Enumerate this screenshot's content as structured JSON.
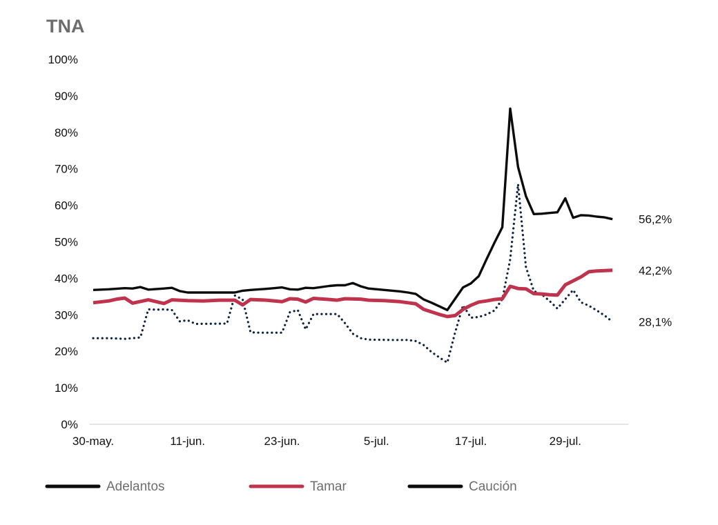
{
  "chart_data": {
    "type": "line",
    "title": "TNA",
    "xlabel": "",
    "ylabel": "",
    "ylim": [
      0,
      100
    ],
    "y_ticks": [
      0,
      10,
      20,
      30,
      40,
      50,
      60,
      70,
      80,
      90,
      100
    ],
    "y_tick_labels": [
      "0%",
      "10%",
      "20%",
      "30%",
      "40%",
      "50%",
      "60%",
      "70%",
      "80%",
      "90%",
      "100%"
    ],
    "x_range": [
      0,
      68
    ],
    "x_ticks": [
      {
        "x": 0,
        "label": "30-may."
      },
      {
        "x": 12,
        "label": "11-jun."
      },
      {
        "x": 24,
        "label": "23-jun."
      },
      {
        "x": 36,
        "label": "5-jul."
      },
      {
        "x": 48,
        "label": "17-jul."
      },
      {
        "x": 60,
        "label": "29-jul."
      }
    ],
    "series": [
      {
        "name": "Adelantos",
        "color": "#0b0b0b",
        "style": "solid",
        "end_label": "56,2%",
        "points": [
          [
            0,
            36.8
          ],
          [
            2,
            37
          ],
          [
            4,
            37.3
          ],
          [
            5,
            37.2
          ],
          [
            6,
            37.6
          ],
          [
            7,
            36.9
          ],
          [
            9,
            37.2
          ],
          [
            10,
            37.4
          ],
          [
            11,
            36.5
          ],
          [
            12,
            36.1
          ],
          [
            14,
            36.1
          ],
          [
            18,
            36.1
          ],
          [
            19,
            36.6
          ],
          [
            20,
            36.8
          ],
          [
            22,
            37.1
          ],
          [
            23,
            37.3
          ],
          [
            24,
            37.5
          ],
          [
            25,
            37
          ],
          [
            26,
            36.9
          ],
          [
            27,
            37.4
          ],
          [
            28,
            37.3
          ],
          [
            30,
            37.9
          ],
          [
            31,
            38.1
          ],
          [
            32,
            38.1
          ],
          [
            33,
            38.7
          ],
          [
            34,
            37.8
          ],
          [
            35,
            37.2
          ],
          [
            37,
            36.8
          ],
          [
            39,
            36.4
          ],
          [
            40,
            36.1
          ],
          [
            41,
            35.7
          ],
          [
            42,
            34.2
          ],
          [
            43,
            33.3
          ],
          [
            44,
            32.3
          ],
          [
            45,
            31.3
          ],
          [
            46,
            34.4
          ],
          [
            47,
            37.5
          ],
          [
            48,
            38.6
          ],
          [
            49,
            40.6
          ],
          [
            50,
            45.3
          ],
          [
            51,
            49.8
          ],
          [
            52,
            54
          ],
          [
            53,
            86.5
          ],
          [
            54,
            70.5
          ],
          [
            55,
            62.5
          ],
          [
            56,
            57.6
          ],
          [
            57,
            57.7
          ],
          [
            58,
            57.9
          ],
          [
            59,
            58.1
          ],
          [
            60,
            61.9
          ],
          [
            61,
            56.6
          ],
          [
            62,
            57.3
          ],
          [
            63,
            57.2
          ],
          [
            64,
            56.9
          ],
          [
            65,
            56.7
          ],
          [
            66,
            56.2
          ]
        ]
      },
      {
        "name": "Tamar",
        "color": "#c0334d",
        "style": "solid",
        "end_label": "42,2%",
        "points": [
          [
            0,
            33.3
          ],
          [
            2,
            33.8
          ],
          [
            3,
            34.3
          ],
          [
            4,
            34.6
          ],
          [
            5,
            33.2
          ],
          [
            7,
            34.1
          ],
          [
            9,
            33.1
          ],
          [
            10,
            34.1
          ],
          [
            12,
            33.9
          ],
          [
            14,
            33.8
          ],
          [
            16,
            34
          ],
          [
            18,
            34
          ],
          [
            19,
            32.7
          ],
          [
            20,
            34.2
          ],
          [
            22,
            34
          ],
          [
            24,
            33.6
          ],
          [
            25,
            34.4
          ],
          [
            26,
            34.3
          ],
          [
            27,
            33.5
          ],
          [
            28,
            34.5
          ],
          [
            30,
            34.2
          ],
          [
            31,
            34
          ],
          [
            32,
            34.4
          ],
          [
            34,
            34.3
          ],
          [
            35,
            34
          ],
          [
            37,
            33.9
          ],
          [
            39,
            33.6
          ],
          [
            40,
            33.3
          ],
          [
            41,
            33
          ],
          [
            42,
            31.5
          ],
          [
            43,
            30.8
          ],
          [
            44,
            30.1
          ],
          [
            45,
            29.5
          ],
          [
            46,
            29.8
          ],
          [
            47,
            31.5
          ],
          [
            48,
            32.6
          ],
          [
            49,
            33.5
          ],
          [
            50,
            33.8
          ],
          [
            51,
            34.2
          ],
          [
            52,
            34.4
          ],
          [
            53,
            37.8
          ],
          [
            54,
            37.2
          ],
          [
            55,
            37.1
          ],
          [
            56,
            35.8
          ],
          [
            57,
            35.7
          ],
          [
            58,
            35.5
          ],
          [
            59,
            35.4
          ],
          [
            60,
            38.2
          ],
          [
            61,
            39.3
          ],
          [
            62,
            40.4
          ],
          [
            63,
            41.8
          ],
          [
            64,
            42
          ],
          [
            65,
            42.1
          ],
          [
            66,
            42.2
          ]
        ]
      },
      {
        "name": "Caución",
        "color": "#0d2340",
        "style": "dotted",
        "end_label": "28,1%",
        "points": [
          [
            0,
            23.6
          ],
          [
            2,
            23.6
          ],
          [
            4,
            23.4
          ],
          [
            5,
            23.6
          ],
          [
            6,
            23.8
          ],
          [
            7,
            31.5
          ],
          [
            8,
            31.4
          ],
          [
            9,
            31.5
          ],
          [
            10,
            31.3
          ],
          [
            11,
            28.2
          ],
          [
            12,
            28.5
          ],
          [
            13,
            27.5
          ],
          [
            17,
            27.6
          ],
          [
            18,
            35.3
          ],
          [
            19,
            34.2
          ],
          [
            20,
            25.2
          ],
          [
            21,
            25.1
          ],
          [
            24,
            25.1
          ],
          [
            25,
            30.7
          ],
          [
            26,
            31.3
          ],
          [
            27,
            26
          ],
          [
            28,
            30.2
          ],
          [
            31,
            30.2
          ],
          [
            32,
            27.7
          ],
          [
            33,
            24.8
          ],
          [
            34,
            23.6
          ],
          [
            35,
            23.2
          ],
          [
            38,
            23.1
          ],
          [
            40,
            23.1
          ],
          [
            41,
            22.8
          ],
          [
            42,
            21.7
          ],
          [
            43,
            19.8
          ],
          [
            44,
            18.3
          ],
          [
            45,
            16.9
          ],
          [
            46,
            25.2
          ],
          [
            47,
            32.6
          ],
          [
            48,
            29.2
          ],
          [
            49,
            29.4
          ],
          [
            50,
            30.1
          ],
          [
            51,
            31.2
          ],
          [
            52,
            34.3
          ],
          [
            53,
            45.2
          ],
          [
            54,
            65.8
          ],
          [
            55,
            43.1
          ],
          [
            56,
            36.5
          ],
          [
            57,
            35.6
          ],
          [
            58,
            33.8
          ],
          [
            59,
            31.7
          ],
          [
            60,
            34.3
          ],
          [
            61,
            36.8
          ],
          [
            62,
            33.4
          ],
          [
            63,
            32.5
          ],
          [
            64,
            31.2
          ],
          [
            65,
            29.8
          ],
          [
            66,
            28.1
          ]
        ]
      }
    ],
    "legend": {
      "position": "bottom",
      "items": [
        {
          "label": "Adelantos",
          "color": "#0b0b0b"
        },
        {
          "label": "Tamar",
          "color": "#c0334d"
        },
        {
          "label": "Caución",
          "color": "#0b0b0b"
        }
      ]
    },
    "axis_color": "#c9c9c9"
  }
}
